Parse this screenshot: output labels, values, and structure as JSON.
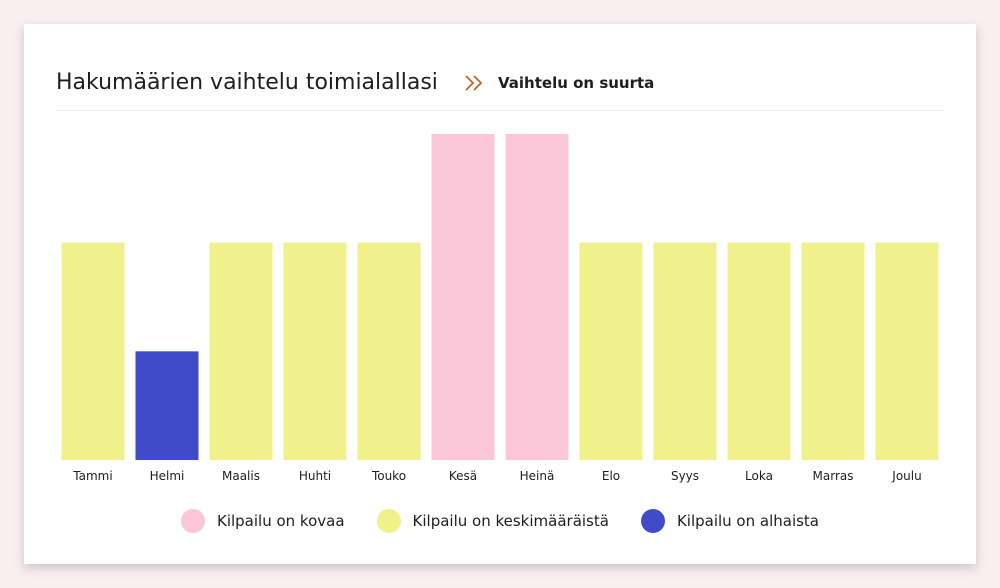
{
  "header": {
    "title": "Hakumäärien vaihtelu toimialallasi",
    "subtitle": "Vaihtelu on suurta",
    "icon": "double-chevron-right-icon",
    "icon_color": "#c0662a"
  },
  "legend": [
    {
      "key": "high",
      "label": "Kilpailu on kovaa",
      "color": "#fbc6d7"
    },
    {
      "key": "mid",
      "label": "Kilpailu on keskimääräistä",
      "color": "#f0f18a"
    },
    {
      "key": "low",
      "label": "Kilpailu on alhaista",
      "color": "#3f4bc9"
    }
  ],
  "chart_data": {
    "type": "bar",
    "categories": [
      "Tammi",
      "Helmi",
      "Maalis",
      "Huhti",
      "Touko",
      "Kesä",
      "Heinä",
      "Elo",
      "Syys",
      "Loka",
      "Marras",
      "Joulu"
    ],
    "values": [
      2,
      1,
      2,
      2,
      2,
      3,
      3,
      2,
      2,
      2,
      2,
      2
    ],
    "levels": [
      "mid",
      "low",
      "mid",
      "mid",
      "mid",
      "high",
      "high",
      "mid",
      "mid",
      "mid",
      "mid",
      "mid"
    ],
    "ylim": [
      0,
      3
    ],
    "grid": false,
    "legend_position": "bottom"
  }
}
